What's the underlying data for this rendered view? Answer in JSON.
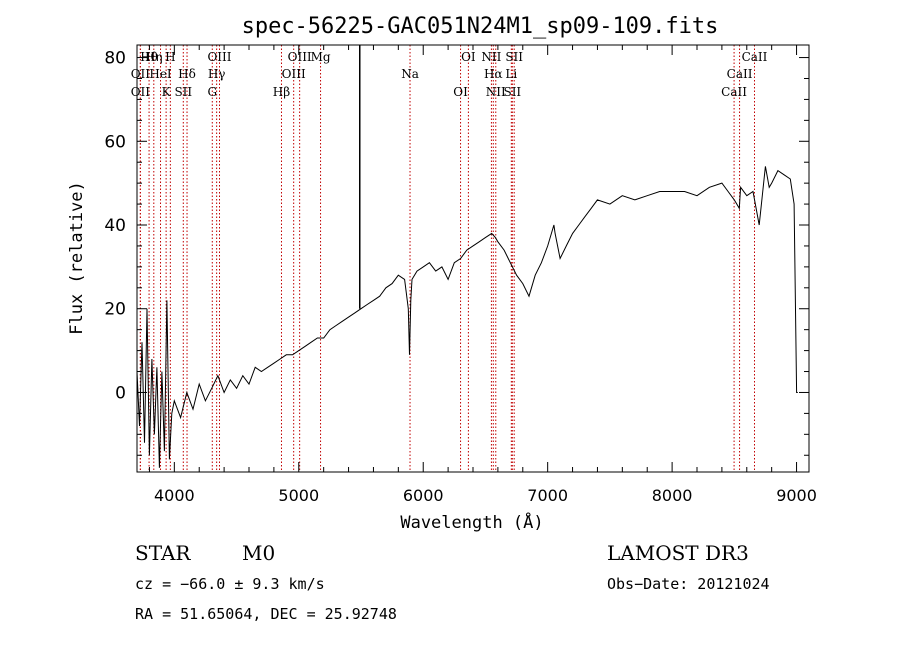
{
  "chart_data": {
    "type": "line",
    "title": "spec-56225-GAC051N24M1_sp09-109.fits",
    "xlabel": "Wavelength (Å)",
    "ylabel": "Flux (relative)",
    "xlim": [
      3700,
      9100
    ],
    "ylim": [
      -19,
      83
    ],
    "xticks": [
      4000,
      5000,
      6000,
      7000,
      8000,
      9000
    ],
    "yticks": [
      0,
      20,
      40,
      60,
      80
    ],
    "xtick_labels": [
      "4000",
      "5000",
      "6000",
      "7000",
      "8000",
      "9000"
    ],
    "ytick_labels": [
      "0",
      "20",
      "40",
      "60",
      "80"
    ],
    "series": [
      {
        "name": "flux",
        "x": [
          3700,
          3720,
          3740,
          3760,
          3780,
          3800,
          3820,
          3840,
          3860,
          3880,
          3900,
          3920,
          3940,
          3960,
          3980,
          4000,
          4050,
          4100,
          4150,
          4200,
          4250,
          4300,
          4350,
          4400,
          4450,
          4500,
          4550,
          4600,
          4650,
          4700,
          4750,
          4800,
          4850,
          4900,
          4950,
          5000,
          5050,
          5100,
          5150,
          5200,
          5250,
          5300,
          5350,
          5400,
          5450,
          5500,
          5550,
          5600,
          5650,
          5700,
          5750,
          5800,
          5850,
          5880,
          5890,
          5900,
          5910,
          5950,
          6000,
          6050,
          6100,
          6150,
          6200,
          6250,
          6300,
          6350,
          6400,
          6450,
          6500,
          6550,
          6580,
          6600,
          6650,
          6700,
          6750,
          6800,
          6850,
          6900,
          6950,
          7000,
          7050,
          7060,
          7100,
          7150,
          7200,
          7250,
          7300,
          7350,
          7400,
          7500,
          7600,
          7700,
          7800,
          7900,
          8000,
          8100,
          8200,
          8300,
          8400,
          8450,
          8500,
          8540,
          8550,
          8600,
          8650,
          8700,
          8750,
          8780,
          8800,
          8850,
          8900,
          8950,
          8980,
          9000,
          9010
        ],
        "y": [
          5,
          -8,
          12,
          -12,
          20,
          -15,
          8,
          -10,
          6,
          -18,
          5,
          -14,
          22,
          -16,
          -5,
          -2,
          -6,
          0,
          -4,
          2,
          -2,
          1,
          4,
          0,
          3,
          1,
          4,
          2,
          6,
          5,
          6,
          7,
          8,
          9,
          9,
          10,
          11,
          12,
          13,
          13,
          15,
          16,
          17,
          18,
          19,
          20,
          21,
          22,
          23,
          25,
          26,
          28,
          27,
          20,
          9,
          22,
          27,
          29,
          30,
          31,
          29,
          30,
          27,
          31,
          32,
          34,
          35,
          36,
          37,
          38,
          37,
          36,
          34,
          31,
          28,
          26,
          23,
          28,
          31,
          35,
          40,
          38,
          32,
          35,
          38,
          40,
          42,
          44,
          46,
          45,
          47,
          46,
          47,
          48,
          48,
          48,
          47,
          49,
          50,
          48,
          46,
          44,
          49,
          47,
          48,
          40,
          54,
          49,
          50,
          53,
          52,
          51,
          45,
          0,
          0
        ],
        "color": "#000000"
      }
    ],
    "emission_lines": [
      {
        "label": "Hθ",
        "wavelength": 3797
      },
      {
        "label": "OII",
        "wavelength": 3727
      },
      {
        "label": "OII",
        "wavelength": 3727
      },
      {
        "label": "Hη",
        "wavelength": 3835
      },
      {
        "label": "HeI",
        "wavelength": 3889
      },
      {
        "label": "K",
        "wavelength": 3934
      },
      {
        "label": "H",
        "wavelength": 3968
      },
      {
        "label": "Hδ",
        "wavelength": 4102
      },
      {
        "label": "SII",
        "wavelength": 4072
      },
      {
        "label": "OIII",
        "wavelength": 4363
      },
      {
        "label": "Hγ",
        "wavelength": 4340
      },
      {
        "label": "G",
        "wavelength": 4305
      },
      {
        "label": "OIII",
        "wavelength": 5007
      },
      {
        "label": "OIII",
        "wavelength": 4959
      },
      {
        "label": "Hβ",
        "wavelength": 4861
      },
      {
        "label": "Mg",
        "wavelength": 5175
      },
      {
        "label": "Na",
        "wavelength": 5894
      },
      {
        "label": "OI",
        "wavelength": 6300
      },
      {
        "label": "OI",
        "wavelength": 6363
      },
      {
        "label": "Hα",
        "wavelength": 6563
      },
      {
        "label": "SII",
        "wavelength": 6716
      },
      {
        "label": "NII",
        "wavelength": 6548
      },
      {
        "label": "Li",
        "wavelength": 6708
      },
      {
        "label": "NII",
        "wavelength": 6583
      },
      {
        "label": "SII",
        "wavelength": 6731
      },
      {
        "label": "CaII",
        "wavelength": 8542
      },
      {
        "label": "CaII",
        "wavelength": 8498
      },
      {
        "label": "CaII",
        "wavelength": 8662
      }
    ],
    "marker_line_wavelength": 5490,
    "line_color": "#c00000"
  },
  "info": {
    "class_label": "STAR",
    "subclass": "M0",
    "survey": "LAMOST DR3",
    "cz": "cz = −66.0 ± 9.3 km/s",
    "obs_date": "Obs−Date: 20121024",
    "coords": "RA =  51.65064, DEC =  25.92748"
  }
}
